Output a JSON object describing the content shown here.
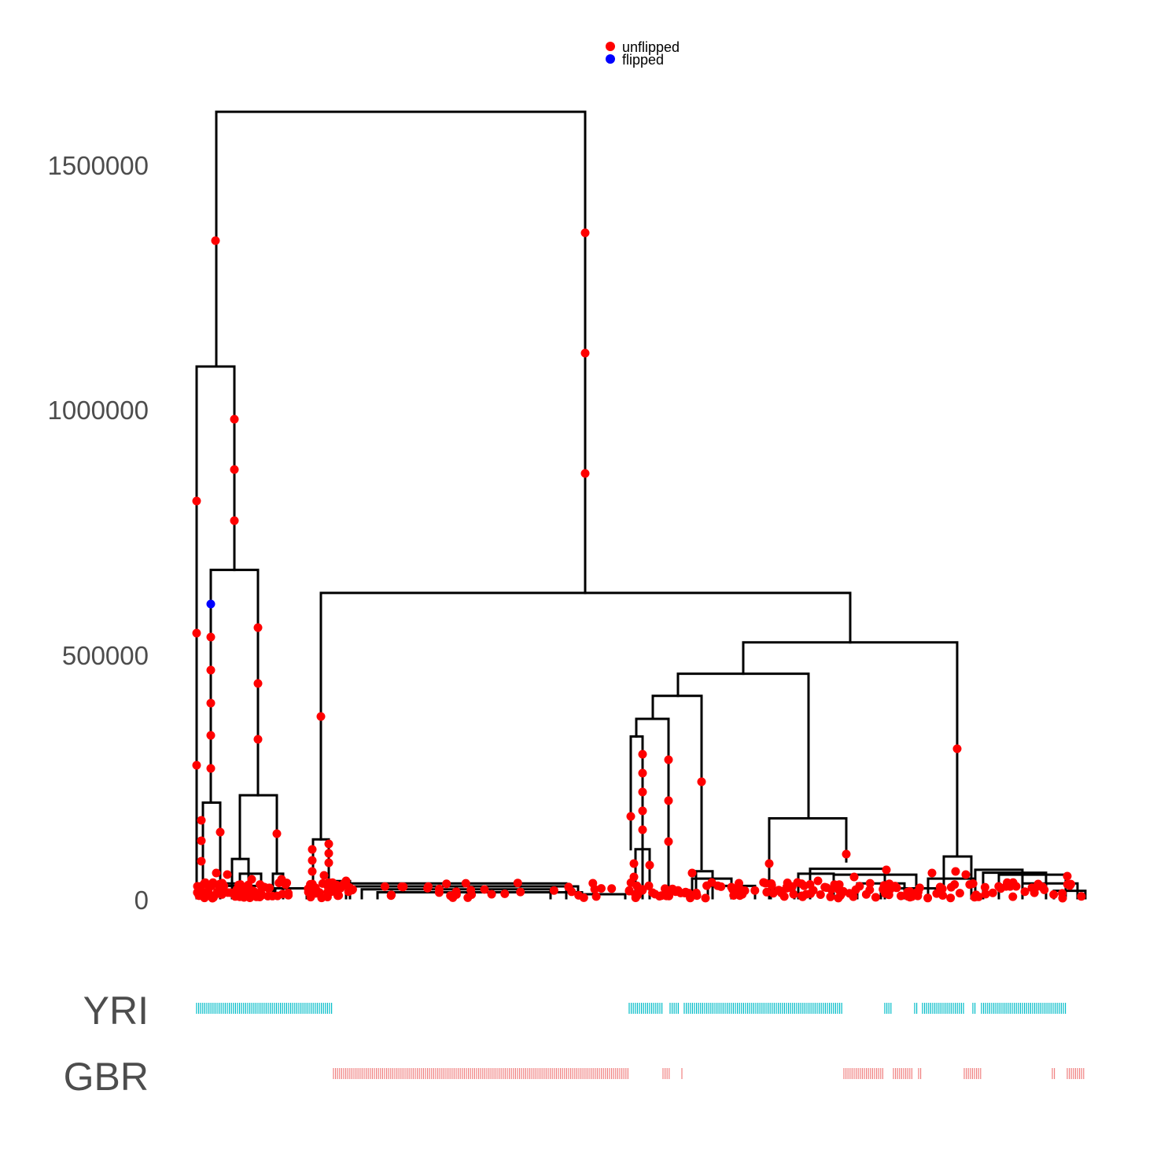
{
  "chart_data": {
    "type": "dendrogram",
    "title": "",
    "ylabel": "",
    "y_ticks": [
      0,
      500000,
      1000000,
      1500000
    ],
    "y_tick_labels": [
      "0",
      "500000",
      "1000000",
      "1500000"
    ],
    "ylim": [
      0,
      1600000
    ],
    "legend": {
      "placement": "top-center",
      "entries": [
        {
          "label": "unflipped",
          "color": "#ff0000"
        },
        {
          "label": "flipped",
          "color": "#0000ff"
        }
      ]
    },
    "tree": {
      "root_height": 1605000,
      "main_clusters": [
        {
          "name": "left",
          "merge_height": 1085000
        },
        {
          "name": "right",
          "merge_height": 623000
        }
      ],
      "sub_merges": [
        {
          "cluster": "left",
          "height": 670000
        },
        {
          "cluster": "left",
          "height": 210000
        },
        {
          "cluster": "left",
          "height": 195000
        },
        {
          "cluster": "right",
          "height": 522000
        },
        {
          "cluster": "right",
          "height": 458000
        },
        {
          "cluster": "right",
          "height": 413000
        },
        {
          "cluster": "right",
          "height": 366000
        },
        {
          "cluster": "right",
          "height": 330000
        },
        {
          "cluster": "right",
          "height": 163000
        },
        {
          "cluster": "right",
          "height": 120000
        }
      ]
    },
    "mutation_points": {
      "unflipped_color": "#ff0000",
      "flipped_color": "#0000ff",
      "flipped_count_visible": 1
    },
    "tracks": [
      {
        "label": "YRI",
        "color": "#00bcc8"
      },
      {
        "label": "GBR",
        "color": "#f08080"
      }
    ]
  }
}
